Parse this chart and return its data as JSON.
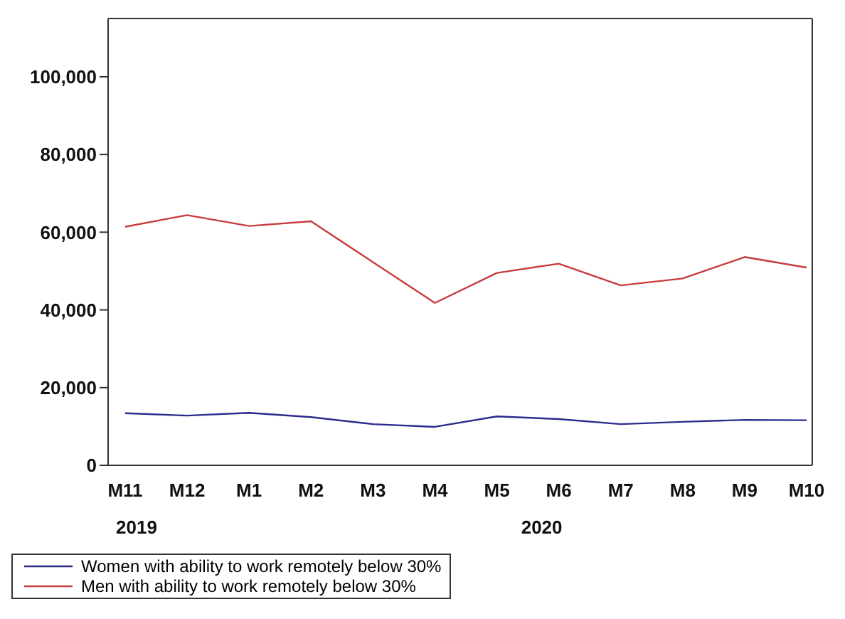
{
  "chart_data": {
    "type": "line",
    "categories": [
      "M11",
      "M12",
      "M1",
      "M2",
      "M3",
      "M4",
      "M5",
      "M6",
      "M7",
      "M8",
      "M9",
      "M10"
    ],
    "series": [
      {
        "name": "Women with ability to work remotely below 30%",
        "color": "#2b2b8c",
        "values": [
          13400,
          12800,
          13500,
          12400,
          10600,
          9900,
          12600,
          11900,
          10600,
          11200,
          11700,
          11600
        ]
      },
      {
        "name": "Men with ability to work remotely below 30%",
        "color": "#c83c3c",
        "values": [
          61400,
          64400,
          61600,
          62800,
          52300,
          41800,
          49500,
          51900,
          46300,
          48100,
          53600,
          50900
        ]
      }
    ],
    "ylim": [
      0,
      115000
    ],
    "yticks": [
      {
        "value": 0,
        "label": "0"
      },
      {
        "value": 20000,
        "label": "20,000"
      },
      {
        "value": 40000,
        "label": "40,000"
      },
      {
        "value": 60000,
        "label": "60,000"
      },
      {
        "value": 80000,
        "label": "80,000"
      },
      {
        "value": 100000,
        "label": "100,000"
      }
    ],
    "annotations": [
      "2019",
      "2020"
    ],
    "legend": "bottom",
    "grid": false,
    "marker": "none",
    "line_style": "solid"
  }
}
